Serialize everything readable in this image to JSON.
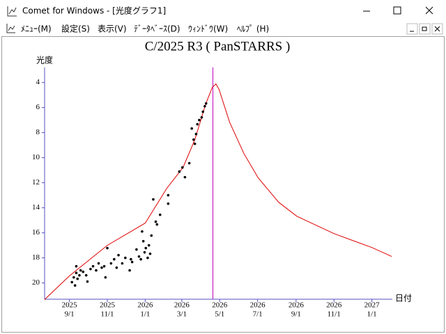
{
  "window": {
    "title": "Comet for Windows - [光度グラフ1]",
    "menu": [
      "ﾒﾆｭｰ(M)",
      "設定(S)",
      "表示(V)",
      "ﾃﾞｰﾀﾍﾞｰｽ(D)",
      "ｳｨﾝﾄﾞｳ(W)",
      "ﾍﾙﾌﾟ (H)"
    ]
  },
  "chart_data": {
    "type": "scatter",
    "title": "C/2025 R3 ( PanSTARRS )",
    "y_label": "光度",
    "x_label": "日付",
    "xlim": [
      "2025-07-23",
      "2027-02-03"
    ],
    "xticks": [
      {
        "value": "2025-09-01",
        "label": [
          "2025",
          "9/1"
        ]
      },
      {
        "value": "2025-11-01",
        "label": [
          "2025",
          "11/1"
        ]
      },
      {
        "value": "2026-01-01",
        "label": [
          "2026",
          "1/1"
        ]
      },
      {
        "value": "2026-03-01",
        "label": [
          "2026",
          "3/1"
        ]
      },
      {
        "value": "2026-05-01",
        "label": [
          "2026",
          "5/1"
        ]
      },
      {
        "value": "2026-07-01",
        "label": [
          "2026",
          "7/1"
        ]
      },
      {
        "value": "2026-09-01",
        "label": [
          "2026",
          "9/1"
        ]
      },
      {
        "value": "2026-11-01",
        "label": [
          "2026",
          "11/1"
        ]
      },
      {
        "value": "2027-01-01",
        "label": [
          "2027",
          "1/1"
        ]
      }
    ],
    "ylim": [
      21.3,
      2.8
    ],
    "yticks": [
      4,
      6,
      8,
      10,
      12,
      14,
      16,
      18,
      20
    ],
    "axis_color": "#5050c0",
    "vline": {
      "x": "2026-04-20",
      "color": "#c000c0"
    },
    "series": [
      {
        "kind": "line",
        "color": "#e00000",
        "x": [
          "2025-07-23",
          "2025-09-01",
          "2025-11-01",
          "2026-01-01",
          "2026-02-05",
          "2026-03-03",
          "2026-03-22",
          "2026-04-08",
          "2026-04-19",
          "2026-04-25",
          "2026-04-30",
          "2026-05-17",
          "2026-06-09",
          "2026-07-02",
          "2026-08-04",
          "2026-09-02",
          "2026-11-01",
          "2027-01-01",
          "2027-02-02"
        ],
        "values": [
          21.33,
          19.44,
          17.0,
          15.22,
          12.44,
          10.78,
          8.56,
          5.78,
          4.39,
          4.11,
          4.56,
          7.17,
          9.67,
          11.61,
          13.56,
          14.67,
          16.06,
          17.17,
          17.89
        ]
      },
      {
        "kind": "scatter",
        "color": "#000000",
        "x": [
          "2025-09-05",
          "2025-09-08",
          "2025-09-10",
          "2025-09-12",
          "2025-09-12",
          "2025-09-14",
          "2025-09-17",
          "2025-09-19",
          "2025-09-23",
          "2025-09-28",
          "2025-09-30",
          "2025-10-05",
          "2025-10-09",
          "2025-10-14",
          "2025-10-18",
          "2025-10-23",
          "2025-10-27",
          "2025-10-29",
          "2025-11-01",
          "2025-11-07",
          "2025-11-12",
          "2025-11-16",
          "2025-11-19",
          "2025-11-25",
          "2025-11-30",
          "2025-12-07",
          "2025-12-09",
          "2025-12-11",
          "2025-12-18",
          "2025-12-22",
          "2025-12-25",
          "2025-12-27",
          "2025-12-29",
          "2025-12-31",
          "2026-01-02",
          "2026-01-05",
          "2026-01-07",
          "2026-01-09",
          "2026-01-11",
          "2026-01-14",
          "2026-01-18",
          "2026-01-20",
          "2026-01-25",
          "2026-02-07",
          "2026-02-07",
          "2026-02-25",
          "2026-03-02",
          "2026-03-06",
          "2026-03-13",
          "2026-03-17",
          "2026-03-20",
          "2026-03-22",
          "2026-03-24",
          "2026-03-26",
          "2026-03-29",
          "2026-04-02",
          "2026-04-04",
          "2026-04-07",
          "2026-04-09"
        ],
        "values": [
          19.94,
          19.56,
          20.2,
          19.2,
          18.67,
          19.67,
          19.39,
          19.0,
          19.11,
          19.39,
          19.89,
          18.89,
          18.67,
          19.0,
          18.44,
          18.78,
          18.67,
          19.56,
          17.22,
          18.44,
          18.11,
          18.78,
          17.78,
          18.44,
          18.0,
          19.0,
          18.11,
          18.33,
          17.33,
          17.89,
          18.11,
          15.89,
          16.67,
          17.56,
          17.22,
          18.0,
          17.0,
          17.67,
          16.22,
          13.33,
          15.11,
          15.33,
          14.56,
          13.67,
          13.0,
          11.11,
          10.78,
          11.56,
          10.44,
          7.67,
          8.56,
          8.89,
          8.11,
          7.33,
          7.0,
          6.78,
          6.33,
          5.89,
          5.67
        ]
      }
    ]
  }
}
